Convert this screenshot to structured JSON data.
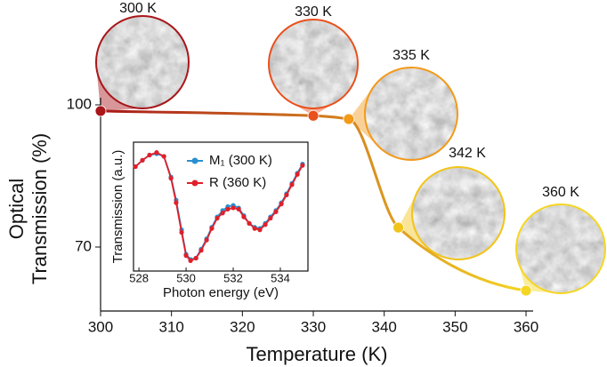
{
  "chart_data": [
    {
      "type": "line",
      "xlabel": "Temperature (K)",
      "ylabel": [
        "Optical",
        "Transmission (%)"
      ],
      "x": [
        300,
        330,
        335,
        342,
        360
      ],
      "values": [
        98.7,
        97.7,
        97.0,
        74.1,
        60.8
      ],
      "point_colors": [
        "#a8161a",
        "#e8501c",
        "#f29a1a",
        "#f2c41a",
        "#f5d623"
      ],
      "line_gradient": [
        "#a8161a",
        "#f5d623"
      ],
      "annotations": [
        "300 K",
        "330 K",
        "335 K",
        "342 K",
        "360 K"
      ],
      "xlim": [
        300,
        361
      ],
      "xticks": [
        300,
        310,
        320,
        330,
        340,
        350,
        360
      ],
      "ylim": [
        56.5,
        101.5
      ],
      "yticks": [
        70,
        100
      ]
    },
    {
      "type": "line",
      "xlabel": "Photon energy (eV)",
      "ylabel": "Transmission (a.u.)",
      "x": [
        527.85,
        528.15,
        528.45,
        528.75,
        529.06,
        529.36,
        529.58,
        529.81,
        530.0,
        530.19,
        530.42,
        530.64,
        530.87,
        531.09,
        531.32,
        531.55,
        531.77,
        532.0,
        532.23,
        532.45,
        532.68,
        532.91,
        533.13,
        533.36,
        533.58,
        533.81,
        534.04,
        534.26,
        534.49,
        534.72,
        534.94
      ],
      "series": [
        {
          "name": "M₁ (300 K)",
          "color": "#2a8fcf",
          "values": [
            0.81,
            0.86,
            0.9,
            0.91,
            0.89,
            0.73,
            0.55,
            0.32,
            0.13,
            0.09,
            0.1,
            0.17,
            0.25,
            0.34,
            0.42,
            0.47,
            0.5,
            0.51,
            0.49,
            0.43,
            0.37,
            0.34,
            0.33,
            0.37,
            0.42,
            0.47,
            0.53,
            0.6,
            0.68,
            0.76,
            0.83
          ]
        },
        {
          "name": "R (360 K)",
          "color": "#e0202a",
          "values": [
            0.81,
            0.86,
            0.9,
            0.92,
            0.89,
            0.72,
            0.53,
            0.3,
            0.12,
            0.08,
            0.1,
            0.16,
            0.24,
            0.33,
            0.41,
            0.45,
            0.48,
            0.49,
            0.48,
            0.42,
            0.37,
            0.33,
            0.32,
            0.36,
            0.41,
            0.46,
            0.52,
            0.59,
            0.67,
            0.75,
            0.82
          ]
        }
      ],
      "xlim": [
        527.77,
        535.17
      ],
      "xticks": [
        528,
        530,
        532,
        534
      ],
      "ylim": [
        0,
        1
      ]
    }
  ]
}
